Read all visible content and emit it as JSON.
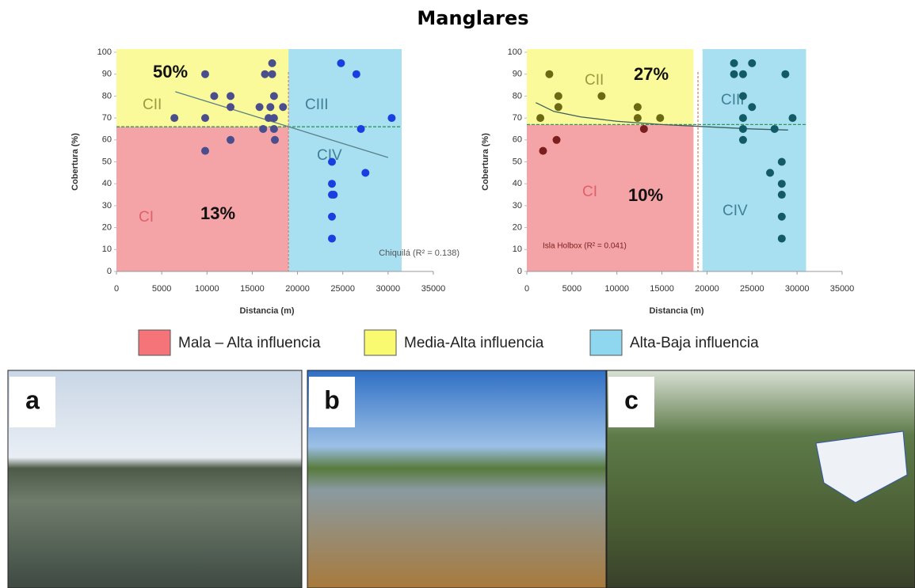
{
  "title": "Manglares",
  "chart_data": [
    {
      "type": "scatter",
      "xlabel": "Distancia (m)",
      "ylabel": "Cobertura (%)",
      "xlim": [
        0,
        35000
      ],
      "ylim": [
        0,
        100
      ],
      "xticks": [
        0,
        5000,
        10000,
        15000,
        20000,
        25000,
        30000,
        35000
      ],
      "yticks": [
        0,
        10,
        20,
        30,
        40,
        50,
        60,
        70,
        80,
        90,
        100
      ],
      "regions": [
        {
          "label": "CI",
          "color": "#f4a3a6",
          "x": [
            0,
            19000
          ],
          "y": [
            0,
            66
          ]
        },
        {
          "label": "CII",
          "color": "#fafa9a",
          "x": [
            0,
            19000
          ],
          "y": [
            66,
            100
          ]
        },
        {
          "label": "CIII",
          "color": "#a8e0f2",
          "x": [
            19000,
            31500
          ],
          "y": [
            0,
            100
          ]
        },
        {
          "label": "CIV",
          "color": "#a8e0f2",
          "x": [
            19000,
            31500
          ],
          "y": [
            0,
            100
          ]
        }
      ],
      "threshold_y": 66,
      "divider_x": 19000,
      "annotations": [
        "50%",
        "13%",
        "Chiquilá (R² = 0.138)"
      ],
      "series": [
        {
          "color": "#4b4e8c",
          "x": [
            6400,
            9800,
            9800,
            9800,
            10800,
            12600,
            12600,
            12600,
            15800,
            16200,
            16400,
            16800,
            17000,
            17200,
            17200,
            17400,
            17400,
            17400,
            17500,
            18400
          ],
          "y": [
            70,
            90,
            70,
            55,
            80,
            80,
            75,
            60,
            75,
            65,
            90,
            70,
            75,
            95,
            90,
            80,
            70,
            65,
            60,
            75
          ]
        },
        {
          "color": "#1a3fe0",
          "x": [
            24800,
            26500,
            27000,
            30400,
            23800,
            23800,
            23800,
            24000,
            23800,
            23800,
            27500
          ],
          "y": [
            95,
            90,
            65,
            70,
            50,
            40,
            35,
            35,
            25,
            15,
            45
          ]
        }
      ],
      "trend": {
        "color": "#5a7f86",
        "x": [
          6500,
          30000
        ],
        "y": [
          82,
          52
        ]
      }
    },
    {
      "type": "scatter",
      "xlabel": "Distancia (m)",
      "ylabel": "Cobertura (%)",
      "xlim": [
        0,
        35000
      ],
      "ylim": [
        0,
        100
      ],
      "xticks": [
        0,
        5000,
        10000,
        15000,
        20000,
        25000,
        30000,
        35000
      ],
      "yticks": [
        0,
        10,
        20,
        30,
        40,
        50,
        60,
        70,
        80,
        90,
        100
      ],
      "regions": [
        {
          "label": "CI",
          "color": "#f4a3a6",
          "x": [
            0,
            18500
          ],
          "y": [
            0,
            67
          ]
        },
        {
          "label": "CII",
          "color": "#fafa9a",
          "x": [
            0,
            18500
          ],
          "y": [
            67,
            100
          ]
        },
        {
          "label": "CIII",
          "color": "#a8e0f2",
          "x": [
            19500,
            31000
          ],
          "y": [
            0,
            100
          ]
        },
        {
          "label": "CIV",
          "color": "#a8e0f2",
          "x": [
            19500,
            31000
          ],
          "y": [
            0,
            100
          ]
        }
      ],
      "threshold_y": 67,
      "divider_x": 19000,
      "annotations": [
        "27%",
        "10%",
        "Isla Holbox (R² = 0.041)"
      ],
      "series": [
        {
          "color": "#6b6a12",
          "x": [
            1500,
            2500,
            3500,
            3500,
            8300,
            12300,
            12300,
            14800
          ],
          "y": [
            70,
            90,
            80,
            75,
            80,
            75,
            70,
            70
          ]
        },
        {
          "color": "#7a1e1e",
          "x": [
            1800,
            3300,
            13000
          ],
          "y": [
            55,
            60,
            65
          ]
        },
        {
          "color": "#125a66",
          "x": [
            23000,
            23000,
            24000,
            25000,
            24000,
            25000,
            24000,
            24000,
            24000,
            27500,
            28700,
            29500,
            27000,
            28300,
            28300,
            28300,
            28300,
            28300
          ],
          "y": [
            95,
            90,
            90,
            95,
            80,
            75,
            70,
            65,
            60,
            65,
            90,
            70,
            45,
            50,
            40,
            35,
            25,
            15
          ]
        }
      ],
      "trend": {
        "color": "#3c5f5a",
        "x": [
          1000,
          3000,
          6000,
          10000,
          15000,
          20000,
          25000,
          29000
        ],
        "y": [
          77,
          73,
          70.5,
          68.5,
          67,
          66,
          65,
          64.5
        ]
      }
    }
  ],
  "legend": [
    {
      "label": "Mala – Alta influencia",
      "color": "#f4747a"
    },
    {
      "label": "Media-Alta influencia",
      "color": "#fafa70"
    },
    {
      "label": "Alta-Baja influencia",
      "color": "#8fd6ef"
    }
  ],
  "photos": [
    {
      "label": "a"
    },
    {
      "label": "b"
    },
    {
      "label": "c"
    }
  ]
}
